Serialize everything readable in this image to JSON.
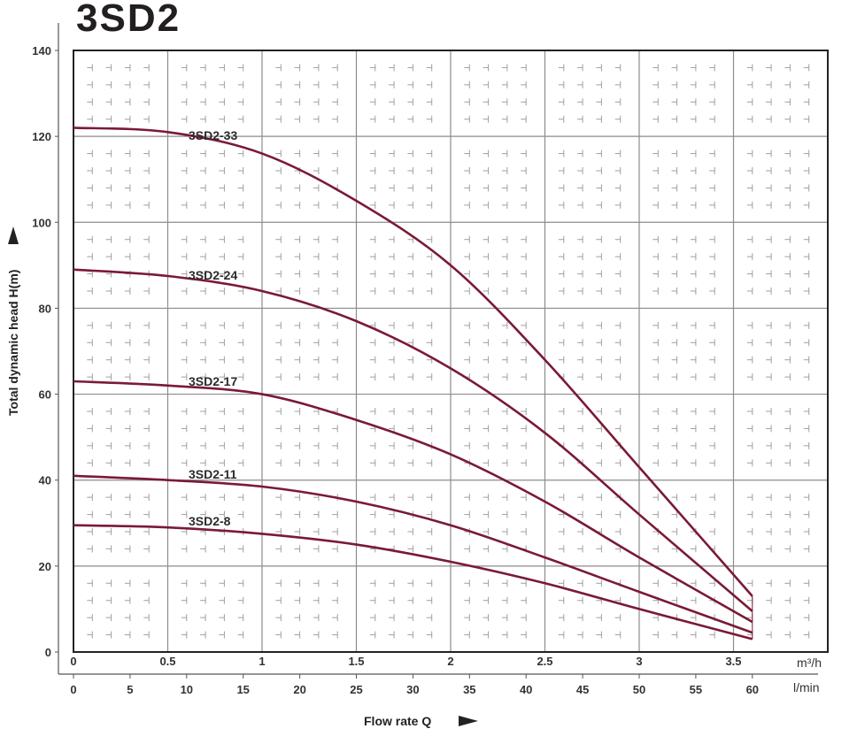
{
  "page": {
    "title": "3SD2"
  },
  "colors": {
    "curve": "#7a1a35",
    "grid_major": "#8c8c8c",
    "grid_minor": "#a0a0a0",
    "frame": "#222222",
    "text": "#333333"
  },
  "chart_data": {
    "type": "line",
    "title": "3SD2",
    "xlabel": "Flow rate Q",
    "ylabel": "Total dynamic head H(m)",
    "x_unit_primary": "m³/h",
    "x_unit_secondary": "l/min",
    "xlim": [
      0,
      4.0
    ],
    "ylim": [
      0,
      140
    ],
    "grid": true,
    "legend_position": "inline labels",
    "y_ticks": [
      0,
      20,
      40,
      60,
      80,
      100,
      120,
      140
    ],
    "x_ticks_m3h": [
      "0",
      "0.5",
      "1",
      "1.5",
      "2",
      "2.5",
      "3",
      "3.5"
    ],
    "x_ticks_lmin": [
      "0",
      "5",
      "10",
      "15",
      "20",
      "25",
      "30",
      "35",
      "40",
      "45",
      "50",
      "55",
      "60"
    ],
    "x": [
      0,
      0.5,
      1.0,
      1.5,
      2.0,
      2.5,
      3.0,
      3.6
    ],
    "series": [
      {
        "name": "3SD2-33",
        "values": [
          122,
          121,
          116,
          105,
          90,
          68,
          43,
          13
        ]
      },
      {
        "name": "3SD2-24",
        "values": [
          89,
          87.5,
          84,
          77,
          66,
          51,
          32,
          9.5
        ]
      },
      {
        "name": "3SD2-17",
        "values": [
          63,
          62,
          60,
          54,
          46,
          35,
          22,
          7
        ]
      },
      {
        "name": "3SD2-11",
        "values": [
          41,
          40,
          38.5,
          35,
          29.5,
          22,
          14,
          4.5
        ]
      },
      {
        "name": "3SD2-8",
        "values": [
          29.5,
          29,
          27.5,
          25,
          21,
          16,
          10,
          3
        ]
      }
    ],
    "labels": {
      "y_axis": "Total dynamic head H(m)",
      "x_axis": "Flow rate Q",
      "unit_m3h": "m³/h",
      "unit_lmin": "l/min"
    }
  }
}
